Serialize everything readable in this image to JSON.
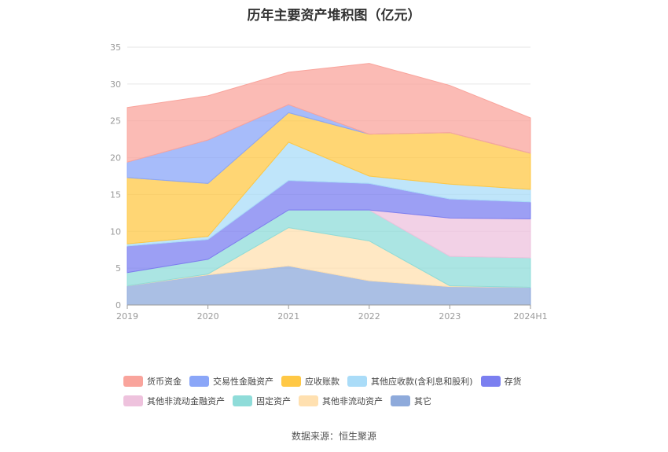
{
  "title": "历年主要资产堆积图（亿元）",
  "source": "数据来源：恒生聚源",
  "chart_data": {
    "type": "area",
    "stacked": true,
    "title": "历年主要资产堆积图（亿元）",
    "x": [
      "2019",
      "2020",
      "2021",
      "2022",
      "2023",
      "2024H1"
    ],
    "ylim": [
      0,
      35
    ],
    "yticks": [
      0,
      5,
      10,
      15,
      20,
      25,
      30,
      35
    ],
    "grid": true,
    "legend_position": "bottom",
    "series": [
      {
        "name": "其它",
        "color": "#8eaadb",
        "values": [
          2.6,
          4.1,
          5.3,
          3.3,
          2.5,
          2.4
        ]
      },
      {
        "name": "其他非流动资产",
        "color": "#ffe0b0",
        "values": [
          0.0,
          0.1,
          5.2,
          5.4,
          0.1,
          0.0
        ]
      },
      {
        "name": "固定资产",
        "color": "#8fdcd9",
        "values": [
          1.8,
          2.0,
          2.4,
          4.2,
          4.0,
          4.0
        ]
      },
      {
        "name": "其他非流动金融资产",
        "color": "#eec2dd",
        "values": [
          0.0,
          0.0,
          0.0,
          0.0,
          5.2,
          5.3
        ]
      },
      {
        "name": "存货",
        "color": "#7b7ff0",
        "values": [
          3.6,
          2.7,
          4.0,
          3.6,
          2.6,
          2.3
        ]
      },
      {
        "name": "其他应收款(含利息和股利)",
        "color": "#aadcf8",
        "values": [
          0.3,
          0.4,
          5.2,
          1.0,
          2.0,
          1.7
        ]
      },
      {
        "name": "应收账款",
        "color": "#ffc845",
        "values": [
          9.0,
          7.2,
          4.0,
          5.7,
          7.0,
          4.9
        ]
      },
      {
        "name": "交易性金融资产",
        "color": "#8aa6f8",
        "values": [
          2.1,
          5.9,
          1.1,
          0.0,
          0.0,
          0.0
        ]
      },
      {
        "name": "货币资金",
        "color": "#f9a49c",
        "values": [
          7.4,
          6.0,
          4.4,
          9.6,
          6.4,
          4.8
        ]
      }
    ]
  },
  "legend": [
    [
      {
        "name": "货币资金",
        "color": "#f9a49c"
      },
      {
        "name": "交易性金融资产",
        "color": "#8aa6f8"
      },
      {
        "name": "应收账款",
        "color": "#ffc845"
      },
      {
        "name": "其他应收款(含利息和股利)",
        "color": "#aadcf8"
      },
      {
        "name": "存货",
        "color": "#7b7ff0"
      }
    ],
    [
      {
        "name": "其他非流动金融资产",
        "color": "#eec2dd"
      },
      {
        "name": "固定资产",
        "color": "#8fdcd9"
      },
      {
        "name": "其他非流动资产",
        "color": "#ffe0b0"
      },
      {
        "name": "其它",
        "color": "#8eaadb"
      }
    ]
  ]
}
